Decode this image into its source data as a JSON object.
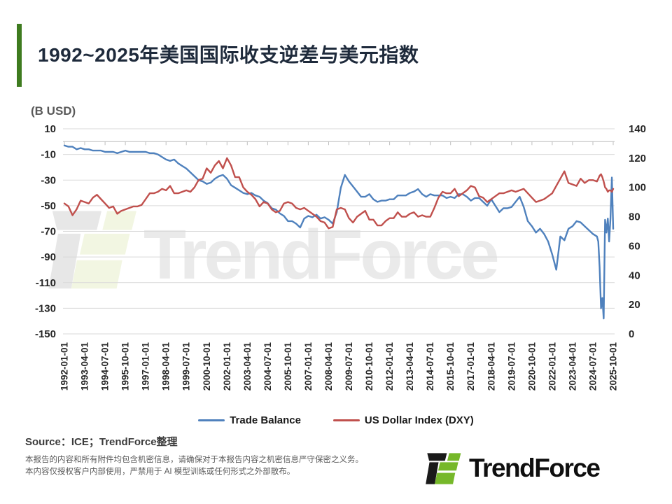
{
  "slide": {
    "title": "1992~2025年美国国际收支逆差与美元指数",
    "accent_green": "#3E7B1F",
    "source_line": "Source：ICE；TrendForce整理",
    "disclaimer_line1": "本报告的内容和所有附件均包含机密信息，请确保对于本报告内容之机密信息严守保密之义务。",
    "disclaimer_line2": "本内容仅授权客户内部使用，严禁用于 AI 模型训练或任何形式之外部散布。"
  },
  "logo": {
    "text": "TrendForce",
    "green": "#76B82A",
    "black": "#1A1A1A"
  },
  "watermark": {
    "text": "TrendForce"
  },
  "chart_data": {
    "type": "line",
    "title": "1992~2025年美国国际收支逆差与美元指数",
    "y_left_label": "(B USD)",
    "y_left_ticks": [
      10,
      -10,
      -30,
      -50,
      -70,
      -90,
      -110,
      -130,
      -150
    ],
    "y_left_range": [
      -150,
      10
    ],
    "y_right_ticks": [
      140,
      120,
      100,
      80,
      60,
      40,
      20,
      0
    ],
    "y_right_range": [
      0,
      140
    ],
    "grid": true,
    "legend_position": "bottom",
    "x_tick_labels": [
      "1992-01-01",
      "1993-04-01",
      "1994-07-01",
      "1995-10-01",
      "1997-01-01",
      "1998-04-01",
      "1999-07-01",
      "2000-10-01",
      "2002-01-01",
      "2003-04-01",
      "2004-07-01",
      "2005-10-01",
      "2007-01-01",
      "2008-04-01",
      "2009-07-01",
      "2010-10-01",
      "2012-01-01",
      "2013-04-01",
      "2014-07-01",
      "2015-10-01",
      "2017-01-01",
      "2018-04-01",
      "2019-07-01",
      "2020-10-01",
      "2022-01-01",
      "2023-04-01",
      "2024-07-01",
      "2025-10-01"
    ],
    "x": [
      "1992-01",
      "1992-04",
      "1992-07",
      "1992-10",
      "1993-01",
      "1993-04",
      "1993-07",
      "1993-10",
      "1994-01",
      "1994-04",
      "1994-07",
      "1994-10",
      "1995-01",
      "1995-04",
      "1995-07",
      "1995-10",
      "1996-01",
      "1996-04",
      "1996-07",
      "1996-10",
      "1997-01",
      "1997-04",
      "1997-07",
      "1997-10",
      "1998-01",
      "1998-04",
      "1998-07",
      "1998-10",
      "1999-01",
      "1999-04",
      "1999-07",
      "1999-10",
      "2000-01",
      "2000-04",
      "2000-07",
      "2000-10",
      "2001-01",
      "2001-04",
      "2001-07",
      "2001-10",
      "2002-01",
      "2002-04",
      "2002-07",
      "2002-10",
      "2003-01",
      "2003-04",
      "2003-07",
      "2003-10",
      "2004-01",
      "2004-04",
      "2004-07",
      "2004-10",
      "2005-01",
      "2005-04",
      "2005-07",
      "2005-10",
      "2006-01",
      "2006-04",
      "2006-07",
      "2006-10",
      "2007-01",
      "2007-04",
      "2007-07",
      "2007-10",
      "2008-01",
      "2008-04",
      "2008-07",
      "2008-10",
      "2009-01",
      "2009-04",
      "2009-07",
      "2009-10",
      "2010-01",
      "2010-04",
      "2010-07",
      "2010-10",
      "2011-01",
      "2011-04",
      "2011-07",
      "2011-10",
      "2012-01",
      "2012-04",
      "2012-07",
      "2012-10",
      "2013-01",
      "2013-04",
      "2013-07",
      "2013-10",
      "2014-01",
      "2014-04",
      "2014-07",
      "2014-10",
      "2015-01",
      "2015-04",
      "2015-07",
      "2015-10",
      "2016-01",
      "2016-04",
      "2016-07",
      "2016-10",
      "2017-01",
      "2017-04",
      "2017-07",
      "2017-10",
      "2018-01",
      "2018-04",
      "2018-07",
      "2018-10",
      "2019-01",
      "2019-04",
      "2019-07",
      "2019-10",
      "2020-01",
      "2020-04",
      "2020-07",
      "2020-10",
      "2021-01",
      "2021-04",
      "2021-07",
      "2021-10",
      "2022-01",
      "2022-04",
      "2022-07",
      "2022-10",
      "2023-01",
      "2023-04",
      "2023-07",
      "2023-10",
      "2024-01",
      "2024-04",
      "2024-07",
      "2024-10",
      "2024-11",
      "2024-12",
      "2025-01",
      "2025-02",
      "2025-03",
      "2025-04",
      "2025-05",
      "2025-06",
      "2025-07",
      "2025-08",
      "2025-09",
      "2025-10"
    ],
    "series": [
      {
        "name": "Trade Balance",
        "axis": "left",
        "color": "#4F81BD",
        "values": [
          -3,
          -4,
          -4,
          -6,
          -5,
          -6,
          -6,
          -7,
          -7,
          -7,
          -8,
          -8,
          -8,
          -9,
          -8,
          -7,
          -8,
          -8,
          -8,
          -8,
          -8,
          -9,
          -9,
          -10,
          -12,
          -14,
          -15,
          -14,
          -17,
          -19,
          -21,
          -24,
          -27,
          -30,
          -31,
          -33,
          -32,
          -29,
          -27,
          -26,
          -29,
          -34,
          -36,
          -38,
          -40,
          -41,
          -40,
          -42,
          -43,
          -46,
          -48,
          -52,
          -53,
          -56,
          -58,
          -62,
          -62,
          -64,
          -67,
          -60,
          -58,
          -59,
          -57,
          -60,
          -59,
          -61,
          -64,
          -55,
          -36,
          -26,
          -31,
          -35,
          -39,
          -43,
          -43,
          -41,
          -45,
          -47,
          -46,
          -46,
          -45,
          -45,
          -42,
          -42,
          -42,
          -40,
          -39,
          -37,
          -41,
          -43,
          -41,
          -42,
          -42,
          -42,
          -44,
          -43,
          -44,
          -41,
          -41,
          -43,
          -46,
          -44,
          -44,
          -47,
          -50,
          -45,
          -50,
          -55,
          -52,
          -52,
          -51,
          -47,
          -43,
          -51,
          -62,
          -66,
          -71,
          -68,
          -72,
          -78,
          -88,
          -100,
          -74,
          -77,
          -68,
          -66,
          -62,
          -63,
          -66,
          -69,
          -72,
          -74,
          -78,
          -98,
          -130,
          -122,
          -138,
          -61,
          -71,
          -60,
          -78,
          -60,
          -28,
          -68
        ]
      },
      {
        "name": "US Dollar Index (DXY)",
        "axis": "right",
        "color": "#C0504D",
        "values": [
          89,
          87,
          81,
          85,
          91,
          90,
          89,
          93,
          95,
          92,
          89,
          86,
          87,
          82,
          84,
          85,
          86,
          87,
          87,
          88,
          92,
          96,
          96,
          97,
          99,
          98,
          101,
          96,
          96,
          97,
          98,
          97,
          100,
          105,
          106,
          113,
          110,
          115,
          118,
          113,
          120,
          115,
          107,
          107,
          100,
          97,
          95,
          92,
          87,
          90,
          89,
          85,
          83,
          84,
          89,
          90,
          89,
          86,
          85,
          86,
          84,
          82,
          80,
          77,
          76,
          72,
          73,
          85,
          86,
          85,
          79,
          76,
          80,
          82,
          84,
          78,
          78,
          74,
          74,
          77,
          79,
          79,
          83,
          80,
          80,
          82,
          83,
          80,
          81,
          80,
          80,
          86,
          93,
          97,
          96,
          96,
          99,
          94,
          96,
          98,
          101,
          100,
          94,
          93,
          90,
          92,
          94,
          96,
          96,
          97,
          98,
          97,
          98,
          99,
          96,
          93,
          90,
          91,
          92,
          94,
          96,
          101,
          106,
          111,
          103,
          102,
          101,
          106,
          103,
          105,
          105,
          104,
          106,
          108,
          109,
          107,
          104,
          100,
          99,
          97,
          98,
          98,
          97,
          99
        ]
      }
    ]
  }
}
